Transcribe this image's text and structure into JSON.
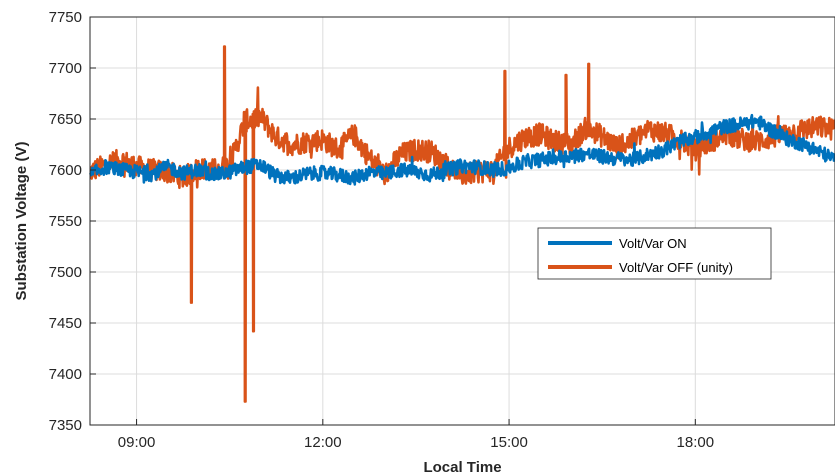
{
  "chart_data": {
    "type": "line",
    "title": "",
    "xlabel": "Local Time",
    "ylabel": "Substation Voltage (V)",
    "xlim": [
      "08:15",
      "20:15"
    ],
    "ylim": [
      7350,
      7750
    ],
    "x_ticks": [
      "09:00",
      "12:00",
      "15:00",
      "18:00"
    ],
    "y_ticks": [
      7350,
      7400,
      7450,
      7500,
      7550,
      7600,
      7650,
      7700,
      7750
    ],
    "grid": true,
    "legend_position": "center-right",
    "series": [
      {
        "name": "Volt/Var ON",
        "color": "#0072BD",
        "x": [
          "08:15",
          "08:30",
          "08:45",
          "09:00",
          "09:15",
          "09:30",
          "09:45",
          "10:00",
          "10:15",
          "10:30",
          "10:45",
          "11:00",
          "11:15",
          "11:30",
          "11:45",
          "12:00",
          "12:15",
          "12:30",
          "12:45",
          "13:00",
          "13:15",
          "13:30",
          "13:45",
          "14:00",
          "14:15",
          "14:30",
          "14:45",
          "15:00",
          "15:15",
          "15:30",
          "15:45",
          "16:00",
          "16:15",
          "16:30",
          "16:45",
          "17:00",
          "17:15",
          "17:30",
          "17:45",
          "18:00",
          "18:15",
          "18:30",
          "18:45",
          "19:00",
          "19:15",
          "19:30",
          "19:45",
          "20:00",
          "20:15"
        ],
        "values": [
          7595,
          7603,
          7600,
          7598,
          7596,
          7603,
          7597,
          7600,
          7595,
          7598,
          7603,
          7605,
          7594,
          7592,
          7596,
          7597,
          7595,
          7592,
          7598,
          7596,
          7600,
          7598,
          7595,
          7600,
          7604,
          7603,
          7600,
          7602,
          7608,
          7610,
          7612,
          7614,
          7616,
          7613,
          7611,
          7610,
          7615,
          7620,
          7628,
          7632,
          7638,
          7643,
          7645,
          7648,
          7638,
          7630,
          7625,
          7618,
          7610
        ]
      },
      {
        "name": "Volt/Var OFF (unity)",
        "color": "#D95319",
        "x": [
          "08:15",
          "08:30",
          "08:45",
          "09:00",
          "09:15",
          "09:30",
          "09:45",
          "10:00",
          "10:15",
          "10:30",
          "10:45",
          "11:00",
          "11:15",
          "11:30",
          "11:45",
          "12:00",
          "12:15",
          "12:30",
          "12:45",
          "13:00",
          "13:15",
          "13:30",
          "13:45",
          "14:00",
          "14:15",
          "14:30",
          "14:45",
          "15:00",
          "15:15",
          "15:30",
          "15:45",
          "16:00",
          "16:15",
          "16:30",
          "16:45",
          "17:00",
          "17:15",
          "17:30",
          "17:45",
          "18:00",
          "18:15",
          "18:30",
          "18:45",
          "19:00",
          "19:15",
          "19:30",
          "19:45",
          "20:00",
          "20:15"
        ],
        "values": [
          7598,
          7605,
          7610,
          7603,
          7600,
          7598,
          7592,
          7602,
          7600,
          7605,
          7648,
          7652,
          7632,
          7625,
          7628,
          7630,
          7620,
          7635,
          7612,
          7595,
          7615,
          7620,
          7618,
          7605,
          7595,
          7598,
          7600,
          7622,
          7632,
          7635,
          7628,
          7625,
          7642,
          7633,
          7622,
          7630,
          7640,
          7636,
          7630,
          7620,
          7628,
          7635,
          7630,
          7628,
          7632,
          7636,
          7640,
          7642,
          7640
        ]
      }
    ],
    "annotations": [
      {
        "series": "Volt/Var OFF (unity)",
        "x": "09:53",
        "value": 7470
      },
      {
        "series": "Volt/Var OFF (unity)",
        "x": "10:25",
        "value": 7721
      },
      {
        "series": "Volt/Var OFF (unity)",
        "x": "10:45",
        "value": 7373
      },
      {
        "series": "Volt/Var OFF (unity)",
        "x": "10:53",
        "value": 7442
      },
      {
        "series": "Volt/Var OFF (unity)",
        "x": "14:56",
        "value": 7697
      },
      {
        "series": "Volt/Var OFF (unity)",
        "x": "15:55",
        "value": 7693
      },
      {
        "series": "Volt/Var OFF (unity)",
        "x": "16:17",
        "value": 7704
      }
    ]
  }
}
